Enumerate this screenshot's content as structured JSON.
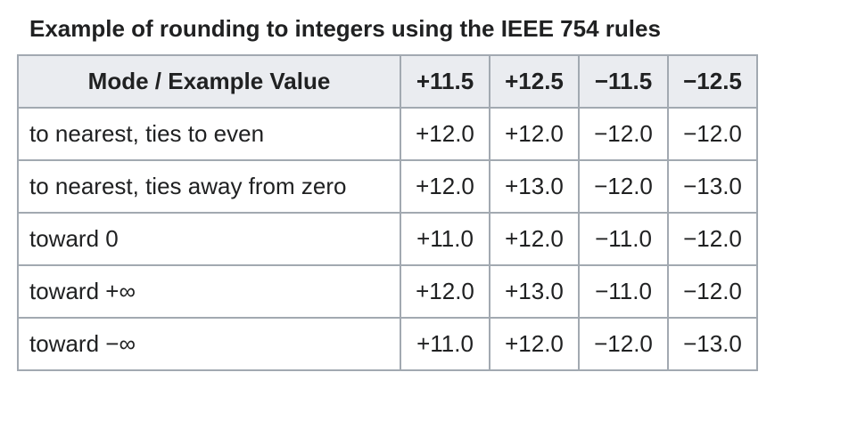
{
  "caption": "Example of rounding to integers using the IEEE 754 rules",
  "table": {
    "header": [
      "Mode / Example Value",
      "+11.5",
      "+12.5",
      "−11.5",
      "−12.5"
    ],
    "rows": [
      [
        "to nearest, ties to even",
        "+12.0",
        "+12.0",
        "−12.0",
        "−12.0"
      ],
      [
        "to nearest, ties away from zero",
        "+12.0",
        "+13.0",
        "−12.0",
        "−13.0"
      ],
      [
        "toward 0",
        "+11.0",
        "+12.0",
        "−11.0",
        "−12.0"
      ],
      [
        "toward +∞",
        "+12.0",
        "+13.0",
        "−11.0",
        "−12.0"
      ],
      [
        "toward −∞",
        "+11.0",
        "+12.0",
        "−12.0",
        "−13.0"
      ]
    ]
  }
}
